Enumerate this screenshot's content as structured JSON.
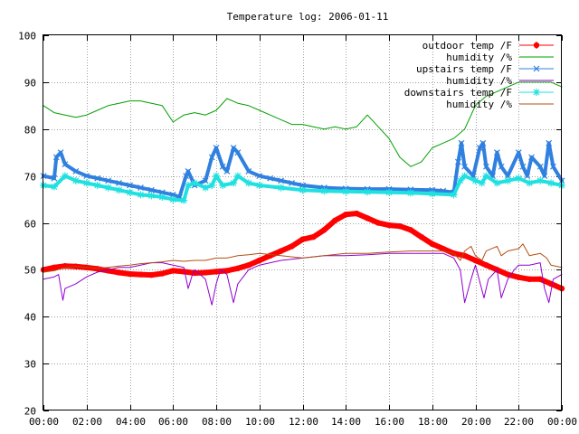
{
  "chart_data": {
    "type": "line",
    "title": "Temperature log: 2006-01-11",
    "xlabel": "",
    "ylabel": "",
    "xlim": [
      0,
      24
    ],
    "ylim": [
      20,
      100
    ],
    "x_ticks": [
      "00:00",
      "02:00",
      "04:00",
      "06:00",
      "08:00",
      "10:00",
      "12:00",
      "14:00",
      "16:00",
      "18:00",
      "20:00",
      "22:00",
      "00:00"
    ],
    "y_ticks": [
      "20",
      "30",
      "40",
      "50",
      "60",
      "70",
      "80",
      "90",
      "100"
    ],
    "grid": true,
    "legend_position": "top-right",
    "series": [
      {
        "name": "outdoor temp /F",
        "color": "#ff0000",
        "style": "thick-points",
        "x": [
          0,
          0.5,
          1,
          1.5,
          2,
          2.5,
          3,
          3.5,
          4,
          4.5,
          5,
          5.5,
          6,
          6.5,
          7,
          7.5,
          8,
          8.5,
          9,
          9.5,
          10,
          10.5,
          11,
          11.5,
          12,
          12.5,
          13,
          13.5,
          14,
          14.5,
          15,
          15.5,
          16,
          16.5,
          17,
          17.5,
          18,
          18.5,
          19,
          19.5,
          20,
          20.5,
          21,
          21.5,
          22,
          22.5,
          23,
          23.5,
          24
        ],
        "y": [
          50,
          50.5,
          50.8,
          50.7,
          50.5,
          50.2,
          49.8,
          49.4,
          49.1,
          49,
          48.9,
          49.2,
          49.8,
          49.6,
          49.3,
          49.4,
          49.6,
          49.8,
          50.3,
          51,
          52,
          53,
          54,
          55,
          56.5,
          57,
          58.5,
          60.5,
          61.8,
          62,
          61,
          60,
          59.5,
          59.3,
          58.5,
          57,
          55.5,
          54.5,
          53.5,
          53,
          52,
          51,
          50,
          49,
          48.4,
          48,
          48,
          47,
          46
        ]
      },
      {
        "name": "humidity /%",
        "color": "#00a000",
        "style": "line",
        "x": [
          0,
          0.5,
          1,
          1.5,
          2,
          2.5,
          3,
          3.5,
          4,
          4.5,
          5,
          5.5,
          6,
          6.5,
          7,
          7.5,
          8,
          8.5,
          9,
          9.5,
          10,
          10.5,
          11,
          11.5,
          12,
          12.5,
          13,
          13.5,
          14,
          14.5,
          15,
          15.5,
          16,
          16.5,
          17,
          17.5,
          18,
          18.5,
          19,
          19.5,
          20,
          20.5,
          21,
          21.5,
          22,
          22.5,
          23,
          23.5,
          24
        ],
        "y": [
          85,
          83.5,
          83,
          82.5,
          83,
          84,
          85,
          85.5,
          86,
          86,
          85.5,
          85,
          81.5,
          83,
          83.5,
          83,
          84,
          86.5,
          85.5,
          85,
          84,
          83,
          82,
          81,
          81,
          80.5,
          80,
          80.5,
          80,
          80.5,
          83,
          80.5,
          78,
          74,
          72,
          73,
          76,
          77,
          78,
          80,
          85,
          87,
          88,
          89,
          90,
          90,
          90,
          90,
          89
        ]
      },
      {
        "name": "upstairs temp /F",
        "color": "#3080e0",
        "style": "x-points",
        "x": [
          0,
          0.5,
          0.6,
          0.8,
          1,
          1.5,
          2,
          2.5,
          3,
          3.5,
          4,
          4.5,
          5,
          5.5,
          6,
          6.3,
          6.6,
          6.7,
          7,
          7.5,
          7.8,
          8,
          8.3,
          8.5,
          8.8,
          9,
          9.5,
          10,
          10.5,
          11,
          11.5,
          12,
          13,
          14,
          15,
          16,
          17,
          18,
          18.5,
          19,
          19.2,
          19.35,
          19.5,
          19.9,
          20.2,
          20.35,
          20.5,
          20.8,
          21,
          21.2,
          21.5,
          22,
          22.2,
          22.4,
          22.6,
          23,
          23.2,
          23.4,
          23.6,
          24
        ],
        "y": [
          70,
          69.5,
          74,
          75,
          72.5,
          71,
          70,
          69.5,
          69,
          68.5,
          68,
          67.5,
          67,
          66.5,
          66,
          65.5,
          70,
          71,
          68,
          69,
          74,
          76,
          72,
          71,
          76,
          75,
          71,
          70,
          69.5,
          69,
          68.5,
          68,
          67.5,
          67.3,
          67.2,
          67.2,
          67.1,
          67,
          66.8,
          66.5,
          73,
          77,
          72,
          70,
          76,
          77,
          72,
          70,
          75,
          72,
          70,
          75,
          72,
          70,
          74,
          72,
          70,
          77,
          72,
          69
        ]
      },
      {
        "name": "humidity /%",
        "color": "#9000d0",
        "style": "line",
        "x": [
          0,
          0.5,
          0.7,
          0.9,
          1,
          1.5,
          2,
          2.5,
          3,
          3.5,
          4,
          4.5,
          5,
          5.5,
          6,
          6.5,
          6.7,
          6.9,
          7,
          7.5,
          7.8,
          8,
          8.2,
          8.5,
          8.8,
          9,
          9.5,
          10,
          11,
          12,
          13,
          14,
          15,
          16,
          17,
          18,
          18.5,
          19,
          19.3,
          19.5,
          19.8,
          20,
          20.4,
          20.6,
          21,
          21.2,
          21.5,
          21.8,
          22,
          22.5,
          23,
          23.2,
          23.4,
          23.6,
          24
        ],
        "y": [
          48,
          48.5,
          49,
          43.5,
          46,
          47,
          48.5,
          49.5,
          50,
          50.5,
          50.5,
          51,
          51.5,
          51.5,
          51,
          50.5,
          46,
          49,
          50,
          48,
          42.5,
          47,
          50,
          49,
          43,
          47,
          50,
          51,
          52,
          52.5,
          53,
          53,
          53.2,
          53.5,
          53.5,
          53.5,
          53.5,
          52.5,
          50,
          43,
          48,
          51,
          44,
          48,
          50,
          44,
          48,
          50,
          51,
          51,
          51.5,
          46,
          43,
          48,
          49
        ]
      },
      {
        "name": "downstairs temp /F",
        "color": "#20e0e0",
        "style": "star-points",
        "x": [
          0,
          0.5,
          1,
          1.5,
          2,
          2.5,
          3,
          3.5,
          4,
          4.5,
          5,
          5.5,
          6,
          6.5,
          6.7,
          7,
          7.5,
          7.8,
          8,
          8.3,
          8.8,
          9,
          9.5,
          10,
          11,
          12,
          13,
          14,
          15,
          16,
          17,
          18,
          19,
          19.3,
          19.5,
          20,
          20.3,
          20.5,
          21,
          21.5,
          22,
          22.5,
          23,
          23.5,
          24
        ],
        "y": [
          68,
          67.7,
          70,
          69,
          68.5,
          68,
          67.5,
          67,
          66.5,
          66,
          65.8,
          65.5,
          65,
          64.8,
          68,
          68.5,
          67.5,
          68,
          70,
          68,
          68.5,
          70,
          68.5,
          68,
          67.5,
          67,
          66.8,
          66.7,
          66.6,
          66.5,
          66.4,
          66.2,
          66,
          69,
          70,
          69,
          68.5,
          70,
          68.5,
          69,
          69.5,
          68.5,
          69,
          68.5,
          68
        ]
      },
      {
        "name": "humidity /%",
        "color": "#b05010",
        "style": "line",
        "x": [
          0,
          0.5,
          1,
          1.5,
          2,
          2.5,
          3,
          3.5,
          4,
          4.5,
          5,
          5.5,
          6,
          6.5,
          7,
          7.5,
          8,
          8.5,
          9,
          9.5,
          10,
          11,
          12,
          13,
          14,
          15,
          16,
          17,
          18,
          18.5,
          19,
          19.3,
          19.5,
          19.8,
          20,
          20.3,
          20.5,
          21,
          21.2,
          21.5,
          22,
          22.2,
          22.5,
          23,
          23.3,
          23.5,
          24
        ],
        "y": [
          49.5,
          49.8,
          50.5,
          50.7,
          50.5,
          50.3,
          50.5,
          50.8,
          51,
          51.3,
          51.5,
          51.7,
          52,
          51.8,
          52,
          52,
          52.5,
          52.5,
          53,
          53.2,
          53.5,
          53,
          52.5,
          53,
          53.5,
          53.5,
          53.8,
          54,
          54,
          54,
          53.5,
          52,
          54,
          55,
          53,
          52,
          54,
          55,
          53,
          54,
          54.5,
          55.5,
          53,
          53.5,
          52.5,
          51,
          50.5
        ]
      }
    ]
  }
}
